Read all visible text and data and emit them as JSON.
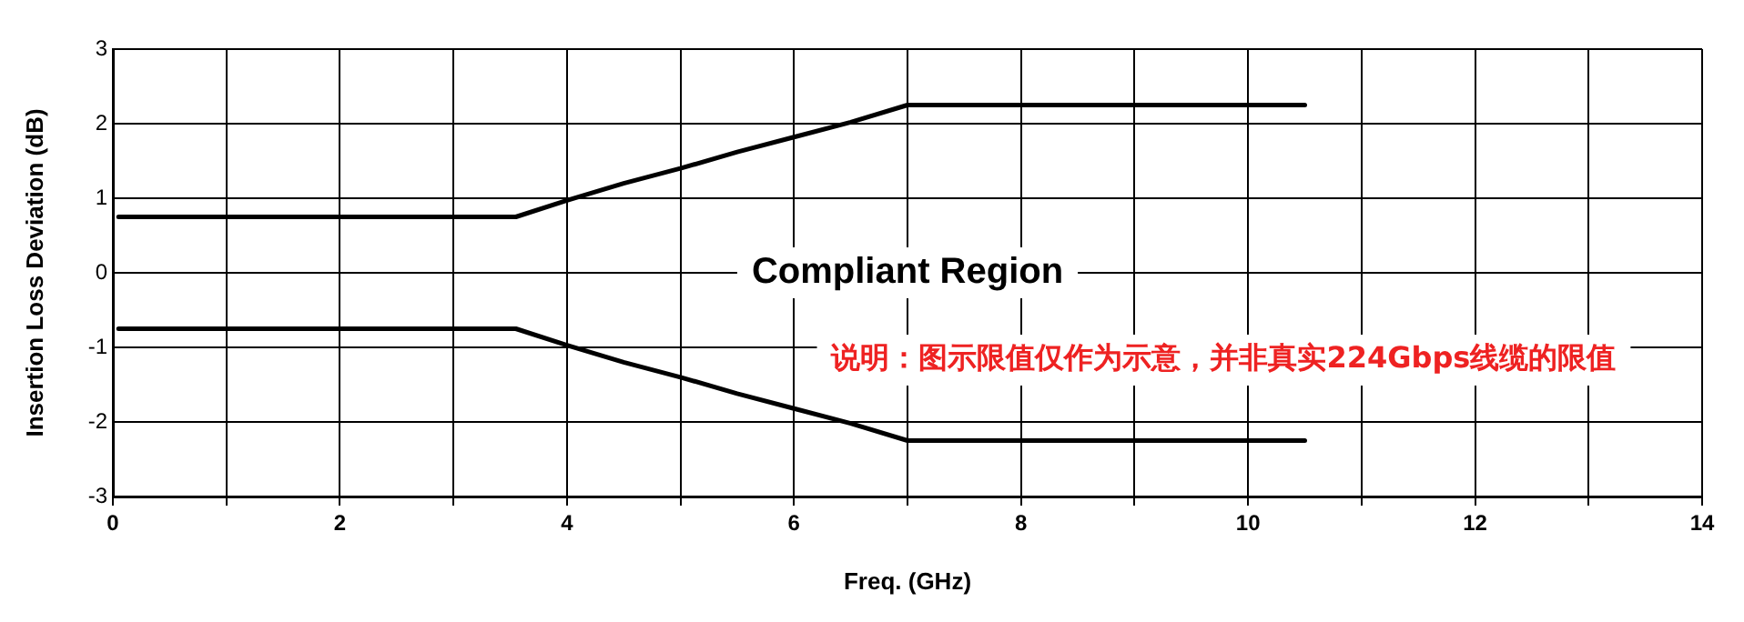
{
  "chart_data": {
    "type": "line",
    "xlabel": "Freq. (GHz)",
    "ylabel": "Insertion Loss Deviation (dB)",
    "xlim": [
      0,
      14
    ],
    "ylim": [
      -3,
      3
    ],
    "xticks": [
      0,
      {
        "value": 1,
        "label": null
      },
      2,
      {
        "value": 3,
        "label": null
      },
      4,
      {
        "value": 5,
        "label": null
      },
      6,
      {
        "value": 7,
        "label": null
      },
      8,
      {
        "value": 9,
        "label": null
      },
      10,
      {
        "value": 11,
        "label": null
      },
      12,
      {
        "value": 13,
        "label": null
      },
      14
    ],
    "yticks": [
      -3,
      -2,
      -1,
      0,
      1,
      2,
      3
    ],
    "grid": true,
    "legend": false,
    "marker": "none",
    "line_style": "solid",
    "series": [
      {
        "color": "#000000",
        "x": [
          0.05,
          3.55,
          4,
          4.5,
          5,
          5.5,
          6,
          6.5,
          7,
          10.5
        ],
        "values": [
          0.75,
          0.75,
          0.97,
          1.2,
          1.4,
          1.62,
          1.82,
          2.02,
          2.25,
          2.25
        ]
      },
      {
        "color": "#000000",
        "x": [
          0.05,
          3.55,
          4,
          4.5,
          5,
          5.5,
          6,
          6.5,
          7,
          10.5
        ],
        "values": [
          -0.75,
          -0.75,
          -0.97,
          -1.2,
          -1.4,
          -1.62,
          -1.82,
          -2.02,
          -2.25,
          -2.25
        ]
      }
    ],
    "annotations": [
      "Compliant Region",
      "说明：图示限值仅作为示意，并非真实224Gbps线缆的限值"
    ]
  }
}
